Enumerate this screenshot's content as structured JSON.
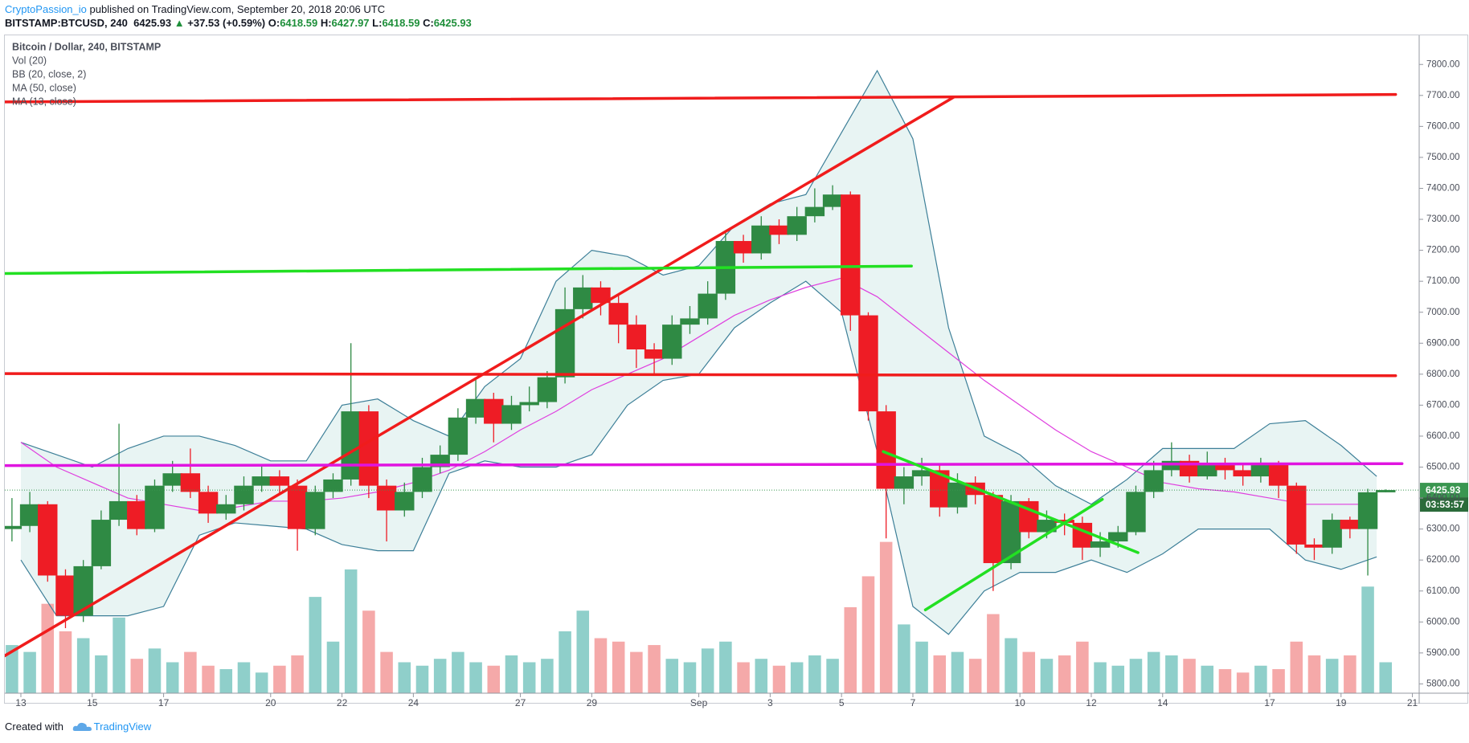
{
  "header": {
    "author": "CryptoPassion_io",
    "published": "published on TradingView.com, September 20, 2018 20:06 UTC",
    "symbol": "BITSTAMP:BTCUSD, 240",
    "last": "6425.93",
    "arrow": "▲",
    "change": "+37.53 (+0.59%)",
    "ohlc": [
      {
        "label": "O:",
        "value": "6418.59"
      },
      {
        "label": "H:",
        "value": "6427.97"
      },
      {
        "label": "L:",
        "value": "6418.59"
      },
      {
        "label": "C:",
        "value": "6425.93"
      }
    ]
  },
  "footer": {
    "created": "Created with",
    "brand": "TradingView"
  },
  "chart_data": {
    "type": "candlestick",
    "legend": [
      "Bitcoin / Dollar, 240, BITSTAMP",
      "Vol (20)",
      "BB (20, close, 2)",
      "MA (50, close)",
      "MA (13, close)"
    ],
    "xlim": [
      12.55,
      52.19
    ],
    "xticks": [
      13,
      15,
      17,
      20,
      22,
      24,
      27,
      29,
      {
        "value": 32,
        "label": "Sep"
      },
      {
        "value": 34,
        "label": "3"
      },
      {
        "value": 36,
        "label": "5"
      },
      {
        "value": 38,
        "label": "7"
      },
      {
        "value": 41,
        "label": "10"
      },
      {
        "value": 43,
        "label": "12"
      },
      {
        "value": 45,
        "label": "14"
      },
      {
        "value": 48,
        "label": "17"
      },
      {
        "value": 50,
        "label": "19"
      },
      {
        "value": 52,
        "label": "21"
      }
    ],
    "ylim": [
      5770,
      7894
    ],
    "yticks": [
      {
        "value": 5800,
        "label": "5800.00"
      },
      {
        "value": 5900,
        "label": "5900.00"
      },
      {
        "value": 6000,
        "label": "6000.00"
      },
      {
        "value": 6100,
        "label": "6100.00"
      },
      {
        "value": 6200,
        "label": "6200.00"
      },
      {
        "value": 6300,
        "label": "6300.00"
      },
      {
        "value": 6400,
        "label": "6400.00"
      },
      {
        "value": 6500,
        "label": "6500.00"
      },
      {
        "value": 6600,
        "label": "6600.00"
      },
      {
        "value": 6700,
        "label": "6700.00"
      },
      {
        "value": 6800,
        "label": "6800.00"
      },
      {
        "value": 6900,
        "label": "6900.00"
      },
      {
        "value": 7000,
        "label": "7000.00"
      },
      {
        "value": 7100,
        "label": "7100.00"
      },
      {
        "value": 7200,
        "label": "7200.00"
      },
      {
        "value": 7300,
        "label": "7300.00"
      },
      {
        "value": 7400,
        "label": "7400.00"
      },
      {
        "value": 7500,
        "label": "7500.00"
      },
      {
        "value": 7600,
        "label": "7600.00"
      },
      {
        "value": 7700,
        "label": "7700.00"
      },
      {
        "value": 7800,
        "label": "7800.00"
      }
    ],
    "up_color": "#2f8a44",
    "down_color": "#ee1c25",
    "volume_up_color": "#8fcfca",
    "volume_down_color": "#f5a9a9",
    "candles": {
      "x": [
        12.75,
        13.25,
        13.75,
        14.25,
        14.75,
        15.25,
        15.75,
        16.25,
        16.75,
        17.25,
        17.75,
        18.25,
        18.75,
        19.25,
        19.75,
        20.25,
        20.75,
        21.25,
        21.75,
        22.25,
        22.75,
        23.25,
        23.75,
        24.25,
        24.75,
        25.25,
        25.75,
        26.25,
        26.75,
        27.25,
        27.75,
        28.25,
        28.75,
        29.25,
        29.75,
        30.25,
        30.75,
        31.25,
        31.75,
        32.25,
        32.75,
        33.25,
        33.75,
        34.25,
        34.75,
        35.25,
        35.75,
        36.25,
        36.75,
        37.25,
        37.75,
        38.25,
        38.75,
        39.25,
        39.75,
        40.25,
        40.75,
        41.25,
        41.75,
        42.25,
        42.75,
        43.25,
        43.75,
        44.25,
        44.75,
        45.25,
        45.75,
        46.25,
        46.75,
        47.25,
        47.75,
        48.25,
        48.75,
        49.25,
        49.75,
        50.25,
        50.75,
        51.25
      ],
      "open": [
        6300,
        6310,
        6380,
        6150,
        6020,
        6180,
        6330,
        6390,
        6300,
        6440,
        6480,
        6420,
        6350,
        6380,
        6440,
        6470,
        6440,
        6300,
        6420,
        6460,
        6680,
        6440,
        6360,
        6420,
        6500,
        6540,
        6660,
        6720,
        6640,
        6700,
        6710,
        6790,
        7010,
        7080,
        7030,
        6960,
        6880,
        6850,
        6960,
        6980,
        7060,
        7230,
        7190,
        7280,
        7250,
        7310,
        7340,
        7380,
        6990,
        6680,
        6430,
        6470,
        6490,
        6370,
        6450,
        6410,
        6190,
        6390,
        6290,
        6330,
        6320,
        6240,
        6260,
        6290,
        6420,
        6490,
        6520,
        6470,
        6510,
        6490,
        6470,
        6510,
        6440,
        6250,
        6240,
        6330,
        6300,
        6418.59
      ],
      "high": [
        6400,
        6420,
        6390,
        6170,
        6200,
        6360,
        6640,
        6410,
        6460,
        6520,
        6560,
        6440,
        6410,
        6470,
        6510,
        6490,
        6460,
        6440,
        6480,
        6900,
        6700,
        6460,
        6450,
        6530,
        6570,
        6690,
        6790,
        6740,
        6730,
        6760,
        6810,
        7080,
        7120,
        7100,
        7060,
        6990,
        6900,
        6990,
        7020,
        7100,
        7260,
        7250,
        7310,
        7300,
        7340,
        7400,
        7410,
        7390,
        7000,
        6700,
        6500,
        6530,
        6510,
        6480,
        6470,
        6420,
        6410,
        6400,
        6360,
        6350,
        6340,
        6290,
        6310,
        6440,
        6520,
        6580,
        6540,
        6550,
        6530,
        6510,
        6530,
        6520,
        6450,
        6270,
        6350,
        6340,
        6430,
        6427.97
      ],
      "low": [
        6260,
        6290,
        6130,
        5980,
        6000,
        6170,
        6310,
        6280,
        6290,
        6420,
        6400,
        6320,
        6330,
        6360,
        6420,
        6410,
        6230,
        6280,
        6400,
        6440,
        6400,
        6260,
        6340,
        6400,
        6480,
        6520,
        6640,
        6580,
        6620,
        6680,
        6690,
        6770,
        6980,
        6990,
        6900,
        6820,
        6800,
        6830,
        6930,
        6960,
        7040,
        7160,
        7170,
        7220,
        7230,
        7290,
        7330,
        6940,
        6650,
        6270,
        6380,
        6440,
        6340,
        6350,
        6380,
        6100,
        6170,
        6270,
        6270,
        6280,
        6200,
        6210,
        6240,
        6280,
        6400,
        6470,
        6450,
        6460,
        6460,
        6440,
        6450,
        6400,
        6220,
        6200,
        6220,
        6270,
        6150,
        6418.59
      ],
      "close": [
        6310,
        6380,
        6150,
        6020,
        6180,
        6330,
        6390,
        6300,
        6440,
        6480,
        6420,
        6350,
        6380,
        6440,
        6470,
        6440,
        6300,
        6420,
        6460,
        6680,
        6440,
        6360,
        6420,
        6500,
        6540,
        6660,
        6720,
        6640,
        6700,
        6710,
        6790,
        7010,
        7080,
        7030,
        6960,
        6880,
        6850,
        6960,
        6980,
        7060,
        7230,
        7190,
        7280,
        7250,
        7310,
        7340,
        7380,
        6990,
        6680,
        6430,
        6470,
        6490,
        6370,
        6450,
        6410,
        6190,
        6390,
        6290,
        6330,
        6320,
        6240,
        6260,
        6290,
        6420,
        6490,
        6520,
        6470,
        6510,
        6490,
        6470,
        6510,
        6440,
        6250,
        6240,
        6330,
        6300,
        6418.59,
        6425.93
      ],
      "volume": [
        1400,
        1200,
        2600,
        1800,
        1600,
        1100,
        2200,
        1000,
        1300,
        900,
        1200,
        800,
        700,
        900,
        600,
        800,
        1100,
        2800,
        1500,
        3600,
        2400,
        1200,
        900,
        800,
        1000,
        1200,
        900,
        800,
        1100,
        900,
        1000,
        1800,
        2400,
        1600,
        1500,
        1200,
        1400,
        1000,
        900,
        1300,
        1500,
        900,
        1000,
        800,
        900,
        1100,
        1000,
        2500,
        3400,
        4400,
        2000,
        1500,
        1100,
        1200,
        1000,
        2300,
        1600,
        1200,
        1000,
        1100,
        1500,
        900,
        800,
        1000,
        1200,
        1100,
        1000,
        800,
        700,
        600,
        800,
        700,
        1500,
        1100,
        1000,
        1100,
        3100,
        900
      ]
    },
    "indicators": {
      "bb_color": "#3d7f98",
      "bb_fill": "#e8f4f3",
      "ma50_color": "#df3fdf",
      "x": [
        13,
        14,
        15,
        16,
        17,
        18,
        19,
        20,
        21,
        22,
        23,
        24,
        25,
        26,
        27,
        28,
        29,
        30,
        31,
        32,
        33,
        34,
        35,
        36,
        37,
        38,
        39,
        40,
        41,
        42,
        43,
        44,
        45,
        46,
        47,
        48,
        49,
        50,
        51
      ],
      "bb_upper": [
        6580,
        6540,
        6500,
        6560,
        6600,
        6600,
        6570,
        6520,
        6520,
        6700,
        6720,
        6650,
        6600,
        6760,
        6850,
        7100,
        7200,
        7180,
        7120,
        7150,
        7280,
        7350,
        7380,
        7580,
        7780,
        7560,
        6950,
        6600,
        6540,
        6440,
        6380,
        6460,
        6560,
        6560,
        6560,
        6640,
        6650,
        6570,
        6470
      ],
      "bb_lower": [
        6200,
        6020,
        6020,
        6020,
        6050,
        6280,
        6320,
        6310,
        6300,
        6250,
        6230,
        6230,
        6480,
        6520,
        6500,
        6500,
        6540,
        6700,
        6780,
        6800,
        6950,
        7030,
        7100,
        7000,
        6550,
        6050,
        5960,
        6100,
        6160,
        6160,
        6200,
        6160,
        6220,
        6300,
        6300,
        6300,
        6200,
        6170,
        6210
      ],
      "ma50": [
        6580,
        6500,
        6450,
        6400,
        6380,
        6360,
        6370,
        6390,
        6390,
        6400,
        6420,
        6450,
        6490,
        6550,
        6620,
        6680,
        6750,
        6800,
        6850,
        6920,
        6990,
        7040,
        7080,
        7110,
        7050,
        6960,
        6870,
        6780,
        6700,
        6620,
        6550,
        6500,
        6450,
        6430,
        6420,
        6400,
        6380,
        6380,
        6380
      ]
    },
    "drawings": [
      {
        "color": "#f01c1c",
        "x": [
          12.55,
          51.53
        ],
        "y": [
          7679,
          7703
        ]
      },
      {
        "color": "#f01c1c",
        "x": [
          12.55,
          39.14
        ],
        "y": [
          5891,
          7694
        ]
      },
      {
        "color": "#22e022",
        "x": [
          12.55,
          37.96
        ],
        "y": [
          7125,
          7149
        ]
      },
      {
        "color": "#f01c1c",
        "x": [
          12.55,
          51.53
        ],
        "y": [
          6802,
          6795
        ]
      },
      {
        "color": "#e014e0",
        "x": [
          12.55,
          51.71
        ],
        "y": [
          6505,
          6511
        ]
      },
      {
        "color": "#22e022",
        "x": [
          37.17,
          44.31
        ],
        "y": [
          6550,
          6224
        ]
      },
      {
        "color": "#22e022",
        "x": [
          38.35,
          43.31
        ],
        "y": [
          6039,
          6396
        ]
      }
    ],
    "last_price": {
      "label": "6425.93",
      "countdown": "03:53:57",
      "color": "#3a9650"
    }
  }
}
